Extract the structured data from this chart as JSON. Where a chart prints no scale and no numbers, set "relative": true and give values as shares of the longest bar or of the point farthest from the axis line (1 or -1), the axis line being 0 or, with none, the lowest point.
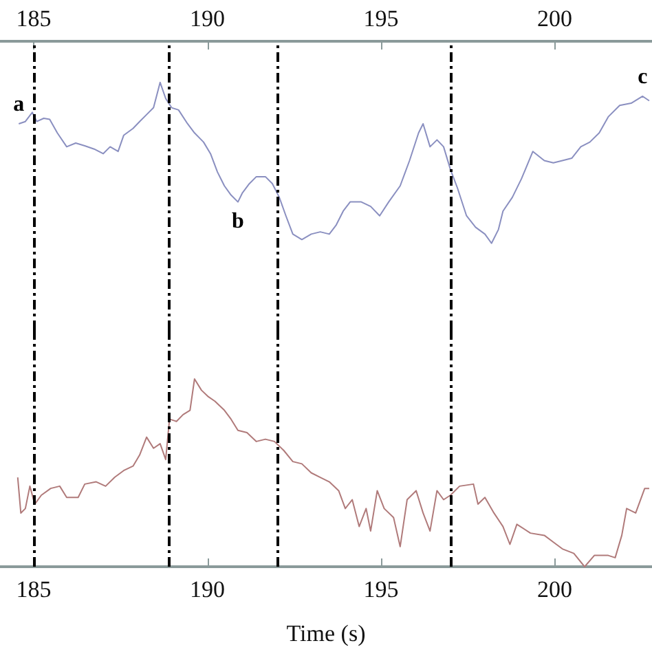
{
  "chart_data": [
    {
      "type": "line",
      "relative": true,
      "marker": "none",
      "xlim": [
        184.03,
        202.8
      ],
      "xticks": [
        185,
        190,
        195,
        200
      ],
      "series": [
        {
          "color": "#8a8fc0",
          "x": [
            184.57,
            184.76,
            184.96,
            185.09,
            185.29,
            185.46,
            185.68,
            185.95,
            186.21,
            186.47,
            186.74,
            187.0,
            187.2,
            187.43,
            187.59,
            187.86,
            188.05,
            188.25,
            188.45,
            188.64,
            188.8,
            188.97,
            189.17,
            189.43,
            189.63,
            189.89,
            190.09,
            190.29,
            190.49,
            190.68,
            190.88,
            191.01,
            191.21,
            191.41,
            191.67,
            191.87,
            192.07,
            192.26,
            192.46,
            192.72,
            192.99,
            193.25,
            193.51,
            193.71,
            193.91,
            194.11,
            194.43,
            194.7,
            194.96,
            195.22,
            195.55,
            195.82,
            196.08,
            196.21,
            196.41,
            196.61,
            196.8,
            197.0,
            197.2,
            197.46,
            197.72,
            197.99,
            198.18,
            198.38,
            198.51,
            198.78,
            199.04,
            199.37,
            199.7,
            199.96,
            200.22,
            200.49,
            200.75,
            201.01,
            201.28,
            201.54,
            201.87,
            202.2,
            202.53,
            202.72
          ],
          "values": [
            0.743,
            0.757,
            0.814,
            0.757,
            0.777,
            0.771,
            0.686,
            0.6,
            0.623,
            0.606,
            0.586,
            0.557,
            0.6,
            0.571,
            0.671,
            0.714,
            0.757,
            0.8,
            0.843,
            1,
            0.9,
            0.843,
            0.829,
            0.743,
            0.686,
            0.629,
            0.557,
            0.443,
            0.357,
            0.3,
            0.257,
            0.314,
            0.371,
            0.414,
            0.414,
            0.371,
            0.286,
            0.171,
            0.057,
            0.023,
            0.057,
            0.071,
            0.057,
            0.114,
            0.2,
            0.257,
            0.257,
            0.229,
            0.171,
            0.257,
            0.357,
            0.514,
            0.686,
            0.743,
            0.6,
            0.643,
            0.6,
            0.457,
            0.343,
            0.171,
            0.1,
            0.057,
            0,
            0.086,
            0.2,
            0.286,
            0.4,
            0.571,
            0.514,
            0.5,
            0.514,
            0.529,
            0.6,
            0.629,
            0.686,
            0.786,
            0.857,
            0.871,
            0.914,
            0.886
          ]
        }
      ],
      "ref_lines": [
        {
          "axis": "x",
          "value": 185,
          "color": "#000000",
          "line_style": "dashed"
        },
        {
          "axis": "x",
          "value": 188.9,
          "color": "#000000",
          "line_style": "dashed"
        },
        {
          "axis": "x",
          "value": 192,
          "color": "#000000",
          "line_style": "dashed"
        },
        {
          "axis": "x",
          "value": 197,
          "color": "#000000",
          "line_style": "dashed"
        }
      ],
      "annotations": [
        {
          "text": "a",
          "x": 184.57,
          "y": 0.743
        },
        {
          "text": "b",
          "x": 190.88,
          "y": 0.257
        },
        {
          "text": "c",
          "x": 202.53,
          "y": 0.914
        }
      ]
    },
    {
      "type": "line",
      "relative": true,
      "marker": "none",
      "xlim": [
        184.03,
        202.8
      ],
      "xticks": [
        185,
        190,
        195,
        200
      ],
      "xlabel": "Time (s)",
      "series": [
        {
          "color": "#b07a7a",
          "x": [
            184.54,
            184.63,
            184.76,
            184.89,
            185.03,
            185.22,
            185.49,
            185.75,
            185.95,
            186.28,
            186.47,
            186.8,
            187.07,
            187.33,
            187.59,
            187.86,
            188.05,
            188.25,
            188.45,
            188.64,
            188.8,
            188.91,
            189.11,
            189.3,
            189.5,
            189.63,
            189.83,
            190.03,
            190.22,
            190.49,
            190.68,
            190.88,
            191.14,
            191.41,
            191.67,
            191.93,
            192.2,
            192.46,
            192.72,
            192.99,
            193.25,
            193.51,
            193.78,
            193.97,
            194.17,
            194.37,
            194.57,
            194.7,
            194.89,
            195.09,
            195.36,
            195.55,
            195.75,
            196.01,
            196.21,
            196.41,
            196.61,
            196.8,
            197.0,
            197.26,
            197.66,
            197.79,
            197.99,
            198.25,
            198.51,
            198.71,
            198.91,
            199.3,
            199.7,
            199.96,
            200.22,
            200.55,
            200.86,
            201.14,
            201.54,
            201.74,
            201.93,
            202.07,
            202.33,
            202.59,
            202.72
          ],
          "values": [
            0.476,
            0.286,
            0.31,
            0.429,
            0.333,
            0.381,
            0.417,
            0.429,
            0.369,
            0.369,
            0.44,
            0.452,
            0.429,
            0.476,
            0.512,
            0.536,
            0.595,
            0.69,
            0.631,
            0.655,
            0.571,
            0.786,
            0.774,
            0.81,
            0.833,
            1,
            0.94,
            0.905,
            0.881,
            0.833,
            0.786,
            0.726,
            0.714,
            0.667,
            0.679,
            0.667,
            0.619,
            0.56,
            0.548,
            0.5,
            0.476,
            0.452,
            0.405,
            0.31,
            0.357,
            0.214,
            0.31,
            0.19,
            0.405,
            0.31,
            0.262,
            0.107,
            0.357,
            0.405,
            0.286,
            0.19,
            0.405,
            0.357,
            0.381,
            0.429,
            0.44,
            0.333,
            0.369,
            0.286,
            0.214,
            0.119,
            0.226,
            0.179,
            0.167,
            0.131,
            0.095,
            0.071,
            0,
            0.06,
            0.06,
            0.048,
            0.167,
            0.31,
            0.286,
            0.417,
            0.417
          ]
        }
      ],
      "ref_lines": [
        {
          "axis": "x",
          "value": 185,
          "color": "#000000",
          "line_style": "dashed"
        },
        {
          "axis": "x",
          "value": 188.9,
          "color": "#000000",
          "line_style": "dashed"
        },
        {
          "axis": "x",
          "value": 192,
          "color": "#000000",
          "line_style": "dashed"
        },
        {
          "axis": "x",
          "value": 197,
          "color": "#000000",
          "line_style": "dashed"
        }
      ]
    }
  ]
}
